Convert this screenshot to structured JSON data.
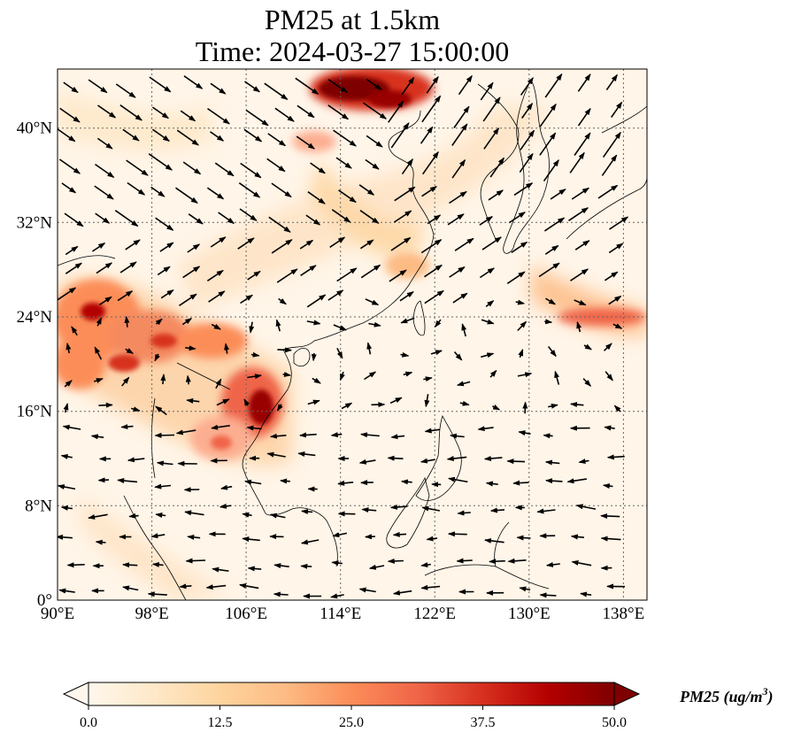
{
  "title": {
    "line1": "PM25 at 1.5km",
    "line2": "Time: 2024-03-27 15:00:00"
  },
  "map": {
    "lon_range": [
      90,
      140
    ],
    "lat_range": [
      0,
      45
    ],
    "lon_ticks": [
      "90°E",
      "98°E",
      "106°E",
      "114°E",
      "122°E",
      "130°E",
      "138°E"
    ],
    "lat_ticks": [
      "0°",
      "8°N",
      "16°N",
      "24°N",
      "32°N",
      "40°N"
    ],
    "gridlines": true,
    "field": "PM25 concentration",
    "overlay": "wind vectors",
    "colormap": "OrRd"
  },
  "colorbar": {
    "label_text": "PM25 (ug/m",
    "label_sup": "3",
    "label_close": ")",
    "ticks": [
      "0.0",
      "12.5",
      "25.0",
      "37.5",
      "50.0"
    ],
    "range": [
      0,
      50
    ],
    "extend": "both",
    "colors": [
      "#fff7ec",
      "#fee8c8",
      "#fdd49e",
      "#fdbb84",
      "#fc8d59",
      "#ef6548",
      "#d7301f",
      "#b30000",
      "#7f0000"
    ]
  }
}
